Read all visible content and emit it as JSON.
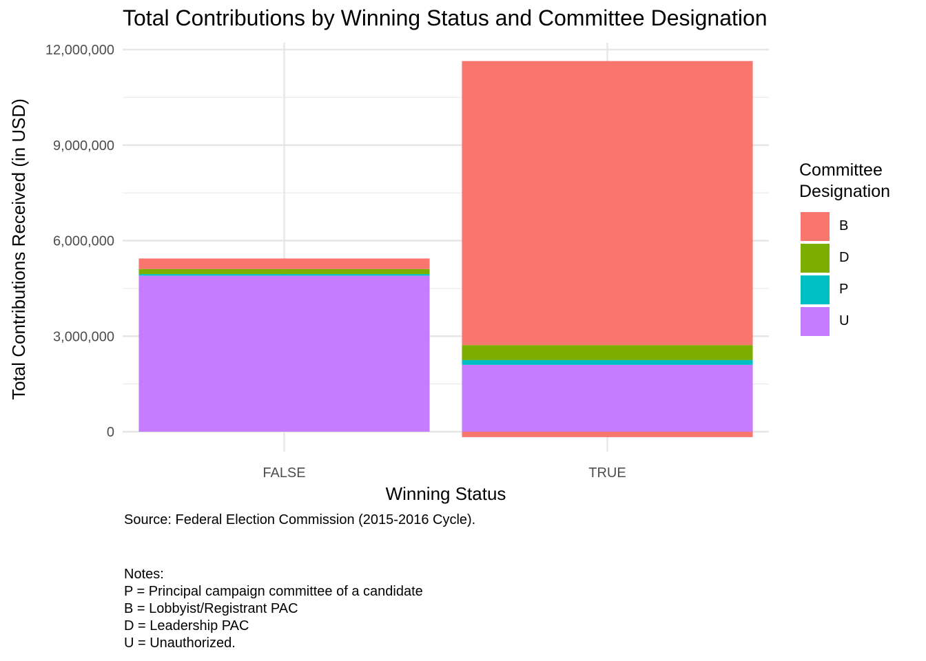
{
  "chart_data": {
    "type": "bar",
    "stacked": true,
    "title": "Total Contributions by Winning Status and Committee Designation",
    "xlabel": "Winning Status",
    "ylabel": "Total Contributions Received (in USD)",
    "categories": [
      "FALSE",
      "TRUE"
    ],
    "ylim": [
      -200000,
      12300000
    ],
    "yticks": [
      0,
      3000000,
      6000000,
      9000000,
      12000000
    ],
    "ytick_labels": [
      "0",
      "3,000,000",
      "6,000,000",
      "9,000,000",
      "12,000,000"
    ],
    "grid": true,
    "legend_position": "right",
    "legend_title": "Committee\nDesignation",
    "series": [
      {
        "name": "B",
        "color": "#F8766D",
        "values": [
          330000,
          8920000
        ],
        "negative": [
          0,
          -170000
        ]
      },
      {
        "name": "D",
        "color": "#7CAE00",
        "values": [
          160000,
          470000
        ],
        "negative": [
          0,
          0
        ]
      },
      {
        "name": "P",
        "color": "#00BFC4",
        "values": [
          50000,
          150000
        ],
        "negative": [
          0,
          0
        ]
      },
      {
        "name": "U",
        "color": "#C77CFF",
        "values": [
          4900000,
          2100000
        ],
        "negative": [
          0,
          0
        ]
      }
    ],
    "caption": "Source: Federal Election Commission (2015-2016 Cycle).",
    "notes": [
      "Notes:",
      "P = Principal campaign committee of a candidate",
      "B = Lobbyist/Registrant PAC",
      "D = Leadership PAC",
      "U = Unauthorized."
    ]
  }
}
